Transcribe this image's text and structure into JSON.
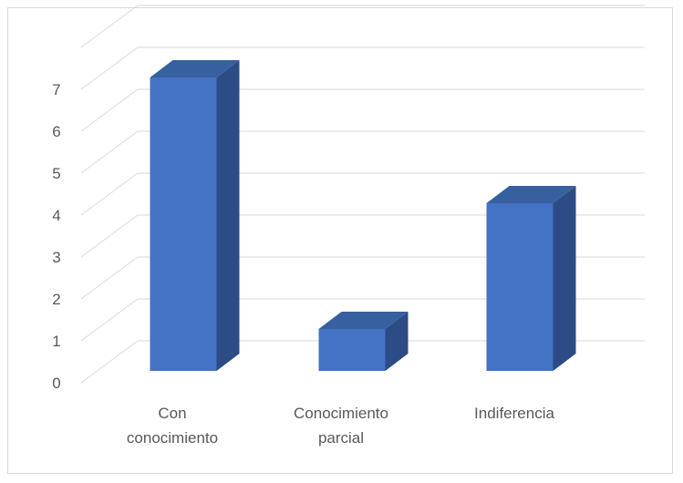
{
  "chart_data": {
    "type": "bar",
    "style": "3d-column",
    "categories": [
      [
        "Con",
        "conocimiento"
      ],
      [
        "Conocimiento",
        "parcial"
      ],
      [
        "Indiferencia"
      ]
    ],
    "values": [
      7,
      1,
      4
    ],
    "ylim": [
      0,
      7
    ],
    "yticks": [
      "0",
      "1",
      "2",
      "3",
      "4",
      "5",
      "6",
      "7"
    ],
    "grid": true,
    "legend": "none",
    "colors": {
      "front": "#4472c4",
      "side": "#2d4b85",
      "top": "#36609f",
      "grid": "#d9d9d9",
      "text": "#595959"
    }
  }
}
